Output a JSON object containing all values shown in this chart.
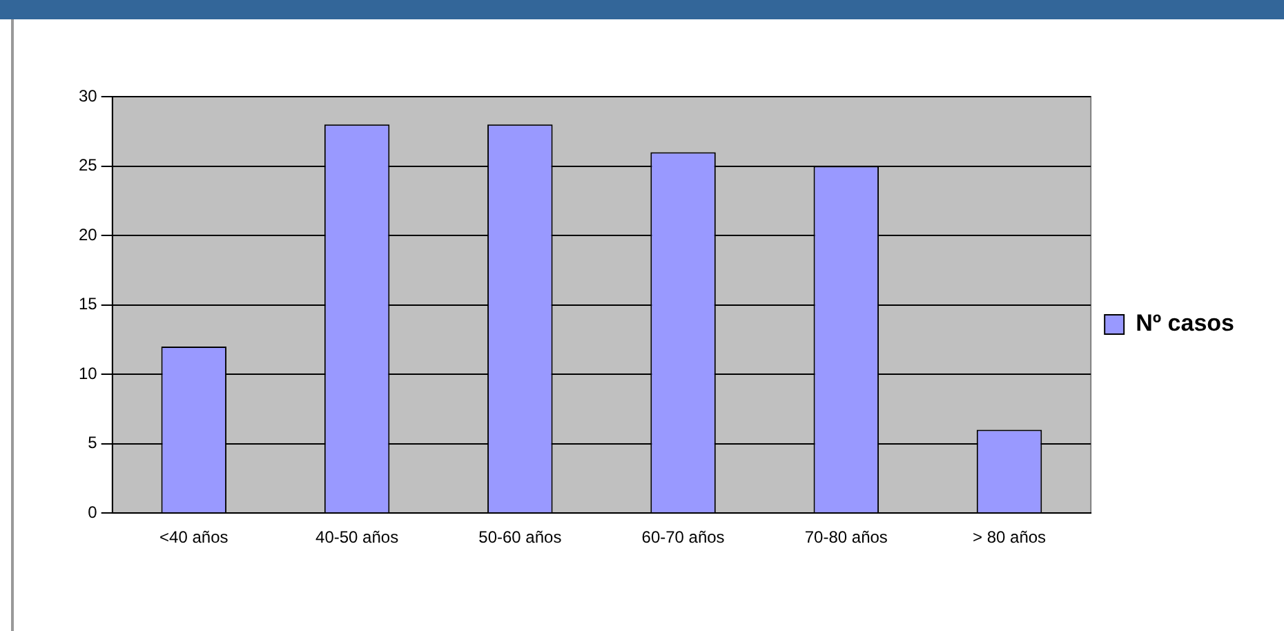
{
  "chart_data": {
    "type": "bar",
    "categories": [
      "<40 años",
      "40-50 años",
      "50-60 años",
      "60-70 años",
      "70-80 años",
      "> 80 años"
    ],
    "series": [
      {
        "name": "Nº casos",
        "color": "#9999ff",
        "values": [
          12,
          28,
          28,
          26,
          25,
          6
        ]
      }
    ],
    "ylim": [
      0,
      30
    ],
    "yticks": [
      0,
      5,
      10,
      15,
      20,
      25,
      30
    ],
    "grid": "y",
    "legend": "right"
  }
}
